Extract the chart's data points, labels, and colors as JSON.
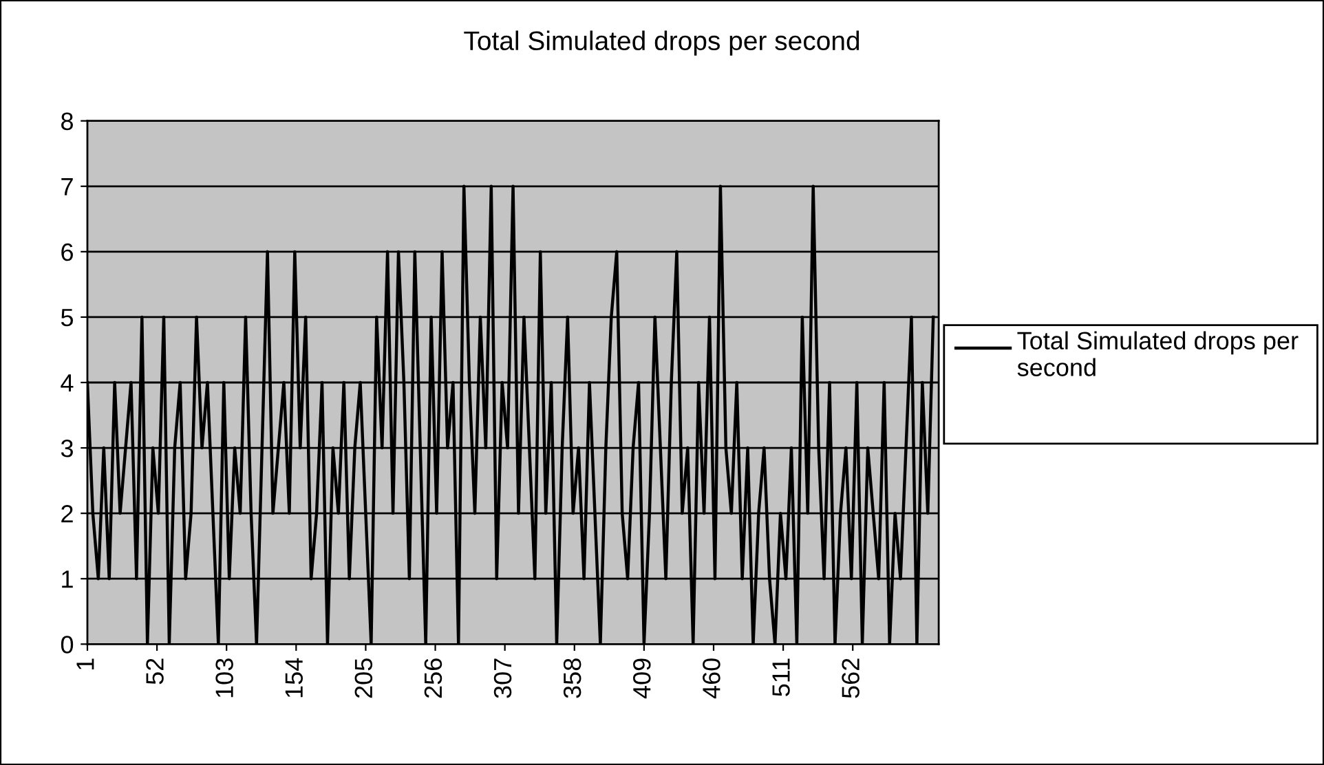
{
  "chart_data": {
    "type": "line",
    "title": "Total Simulated drops per second",
    "x": [
      1,
      5,
      9,
      13,
      17,
      21,
      25,
      29,
      33,
      37,
      41,
      45,
      49,
      53,
      57,
      61,
      65,
      69,
      73,
      77,
      81,
      85,
      89,
      93,
      97,
      101,
      105,
      109,
      113,
      117,
      121,
      125,
      129,
      133,
      137,
      141,
      145,
      149,
      153,
      157,
      161,
      165,
      169,
      173,
      177,
      181,
      185,
      189,
      193,
      197,
      201,
      205,
      209,
      213,
      217,
      221,
      225,
      229,
      233,
      237,
      241,
      245,
      249,
      253,
      257,
      261,
      265,
      269,
      273,
      277,
      281,
      285,
      289,
      293,
      297,
      301,
      305,
      309,
      313,
      317,
      321,
      325,
      329,
      333,
      337,
      341,
      345,
      349,
      353,
      357,
      361,
      365,
      369,
      373,
      377,
      381,
      385,
      389,
      393,
      397,
      401,
      405,
      409,
      413,
      417,
      421,
      425,
      429,
      433,
      437,
      441,
      445,
      449,
      453,
      457,
      461,
      465,
      469,
      473,
      477,
      481,
      485,
      489,
      493,
      497,
      501,
      505,
      509,
      513,
      517,
      521,
      525,
      529,
      533,
      537,
      541,
      545,
      549,
      553,
      557,
      561,
      565,
      569,
      573,
      577,
      581,
      585,
      589,
      593,
      597,
      601,
      605,
      609,
      613,
      617,
      621
    ],
    "series": [
      {
        "name": "Total Simulated drops per second",
        "color": "#000000",
        "values": [
          4,
          2,
          1,
          3,
          1,
          4,
          2,
          3,
          4,
          1,
          5,
          0,
          3,
          2,
          5,
          0,
          3,
          4,
          1,
          2,
          5,
          3,
          4,
          2,
          0,
          4,
          1,
          3,
          2,
          5,
          2,
          0,
          3,
          6,
          2,
          3,
          4,
          2,
          6,
          3,
          5,
          1,
          2,
          4,
          0,
          3,
          2,
          4,
          1,
          3,
          4,
          2,
          0,
          5,
          3,
          6,
          2,
          6,
          4,
          1,
          6,
          3,
          0,
          5,
          2,
          6,
          3,
          4,
          0,
          7,
          4,
          2,
          5,
          3,
          7,
          1,
          4,
          3,
          7,
          2,
          5,
          3,
          1,
          6,
          2,
          4,
          0,
          3,
          5,
          2,
          3,
          1,
          4,
          2,
          0,
          3,
          5,
          6,
          2,
          1,
          3,
          4,
          0,
          2,
          5,
          3,
          1,
          4,
          6,
          2,
          3,
          0,
          4,
          2,
          5,
          1,
          7,
          3,
          2,
          4,
          1,
          3,
          0,
          2,
          3,
          1,
          0,
          2,
          1,
          3,
          0,
          5,
          2,
          7,
          3,
          1,
          4,
          0,
          2,
          3,
          1,
          4,
          0,
          3,
          2,
          1,
          4,
          0,
          2,
          1,
          3,
          5,
          0,
          4,
          2,
          5
        ]
      }
    ],
    "xlim": [
      1,
      625
    ],
    "xticks": [
      1,
      52,
      103,
      154,
      205,
      256,
      307,
      358,
      409,
      460,
      511,
      562
    ],
    "ylim": [
      0,
      8
    ],
    "yticks": [
      0,
      1,
      2,
      3,
      4,
      5,
      6,
      7,
      8
    ],
    "grid": "y",
    "legend": "right",
    "marker": "none",
    "line_style": "solid"
  }
}
